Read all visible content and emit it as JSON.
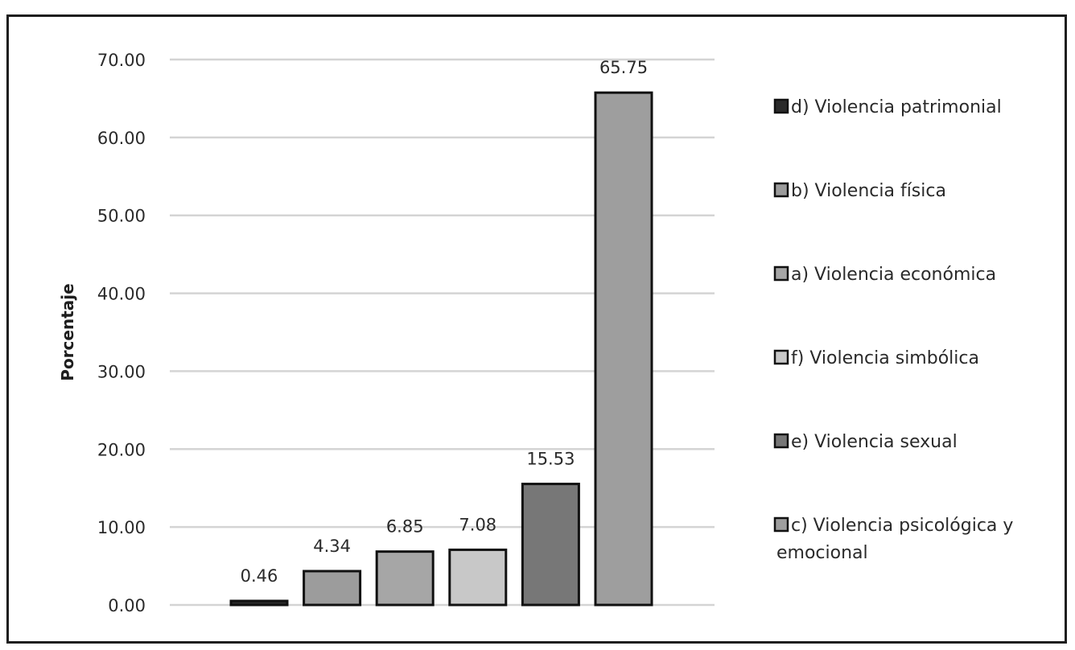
{
  "chart_data": {
    "type": "bar",
    "title": "",
    "xlabel": "",
    "ylabel": "Porcentaje",
    "ylim": [
      0,
      70
    ],
    "yticks": [
      "0.00",
      "10.00",
      "20.00",
      "30.00",
      "40.00",
      "50.00",
      "60.00",
      "70.00"
    ],
    "grid": true,
    "legend_position": "right",
    "categories": [
      "d) Violencia patrimonial",
      "b) Violencia física",
      "a) Violencia económica",
      "f) Violencia simbólica",
      "e) Violencia sexual",
      "c) Violencia psicológica y emocional"
    ],
    "legend_lines": [
      [
        "d) Violencia patrimonial"
      ],
      [
        "b) Violencia física"
      ],
      [
        "a) Violencia económica"
      ],
      [
        "f) Violencia simbólica"
      ],
      [
        "e) Violencia sexual"
      ],
      [
        "c) Violencia psicológica y",
        "emocional"
      ]
    ],
    "values": [
      0.46,
      4.34,
      6.85,
      7.08,
      15.53,
      65.75
    ],
    "value_labels": [
      "0.46",
      "4.34",
      "6.85",
      "7.08",
      "15.53",
      "65.75"
    ],
    "colors": [
      "#2a2a2a",
      "#9c9c9c",
      "#a6a6a6",
      "#c8c8c8",
      "#777777",
      "#9e9e9e"
    ]
  }
}
